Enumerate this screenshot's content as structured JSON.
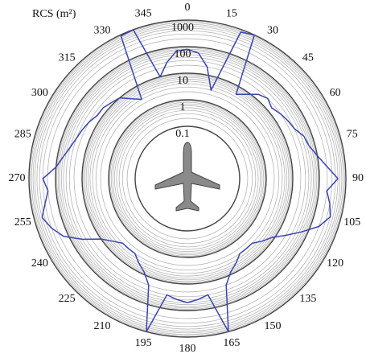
{
  "chart_data": {
    "type": "polar",
    "title": "RCS (m²)",
    "x": [
      0,
      5,
      10,
      15,
      20,
      25,
      30,
      35,
      40,
      45,
      50,
      55,
      60,
      65,
      70,
      75,
      80,
      85,
      90,
      95,
      100,
      105,
      110,
      115,
      120,
      125,
      130,
      135,
      140,
      145,
      150,
      155,
      160,
      165,
      170,
      175,
      180,
      185,
      190,
      195,
      200,
      205,
      210,
      215,
      220,
      225,
      230,
      235,
      240,
      245,
      250,
      255,
      260,
      265,
      270,
      275,
      280,
      285,
      290,
      295,
      300,
      305,
      310,
      315,
      320,
      325,
      330,
      335,
      340,
      345,
      350,
      355
    ],
    "series": [
      {
        "color": "#3a45b0",
        "values": [
          80,
          60,
          20,
          3,
          800,
          1000,
          5,
          8,
          15,
          20,
          15,
          20,
          25,
          30,
          50,
          60,
          100,
          200,
          500,
          200,
          300,
          400,
          200,
          60,
          20,
          8,
          5,
          3,
          3,
          3,
          5,
          8,
          20,
          1000,
          30,
          40,
          50,
          40,
          30,
          1000,
          20,
          8,
          5,
          3,
          3,
          3,
          5,
          10,
          40,
          150,
          300,
          500,
          300,
          200,
          300,
          100,
          60,
          40,
          30,
          25,
          20,
          15,
          15,
          12,
          10,
          5,
          3,
          900,
          1000,
          10,
          30,
          70
        ]
      }
    ],
    "rlim": [
      0.1,
      1000
    ],
    "rticks": [
      0.1,
      1,
      10,
      100,
      1000
    ],
    "log_r": true,
    "xticks": [
      0,
      15,
      30,
      45,
      60,
      75,
      90,
      105,
      120,
      135,
      150,
      165,
      180,
      195,
      210,
      225,
      240,
      255,
      270,
      285,
      300,
      315,
      330,
      345
    ],
    "grid": true
  }
}
